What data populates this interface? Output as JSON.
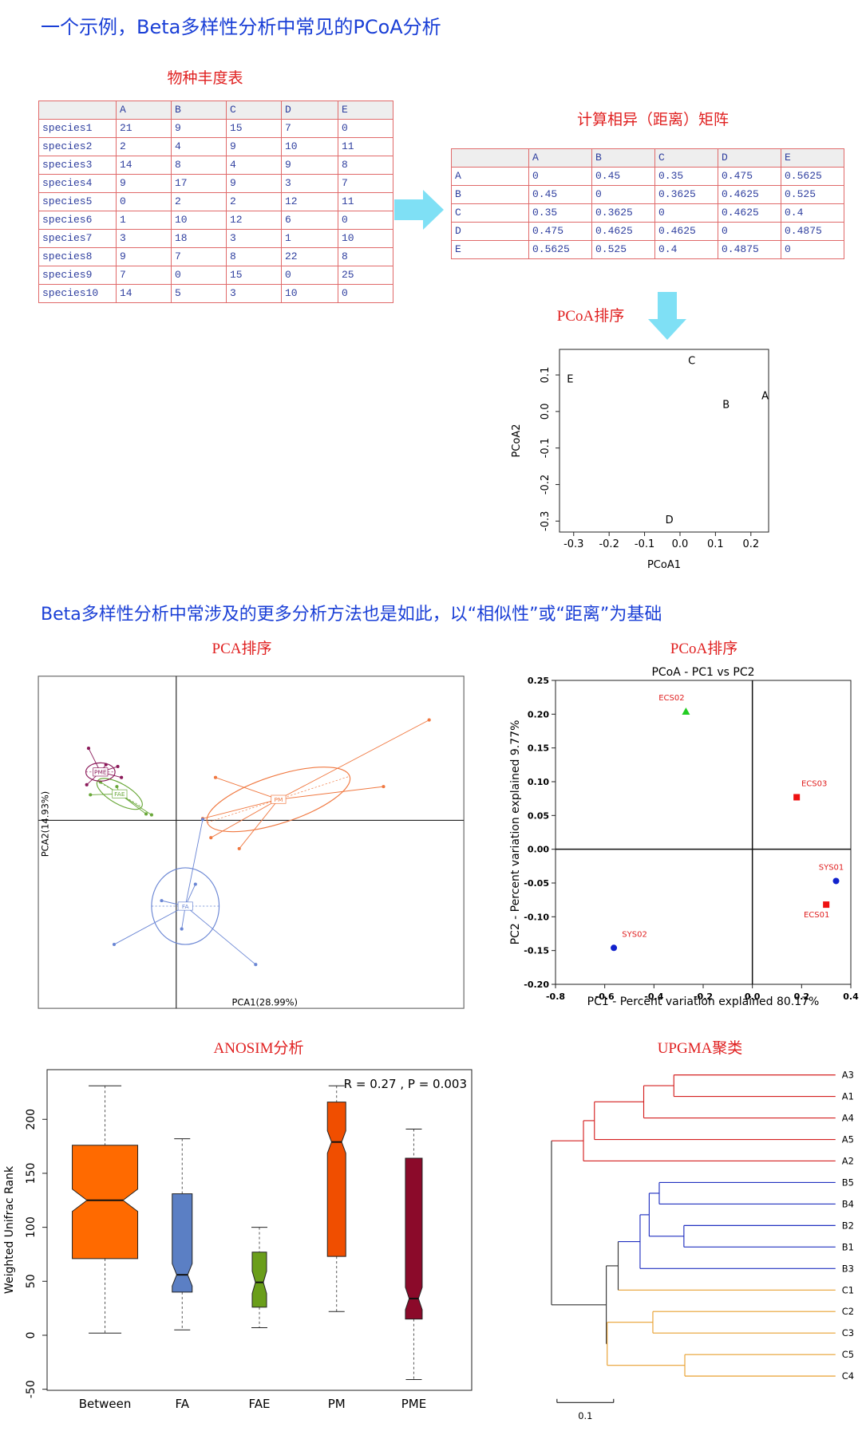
{
  "title": "一个示例，Beta多样性分析中常见的PCoA分析",
  "abundance_table": {
    "title": "物种丰度表",
    "columns": [
      "A",
      "B",
      "C",
      "D",
      "E"
    ],
    "rows": [
      {
        "name": "species1",
        "values": [
          21,
          9,
          15,
          7,
          0
        ]
      },
      {
        "name": "species2",
        "values": [
          2,
          4,
          9,
          10,
          11
        ]
      },
      {
        "name": "species3",
        "values": [
          14,
          8,
          4,
          9,
          8
        ]
      },
      {
        "name": "species4",
        "values": [
          9,
          17,
          9,
          3,
          7
        ]
      },
      {
        "name": "species5",
        "values": [
          0,
          2,
          2,
          12,
          11
        ]
      },
      {
        "name": "species6",
        "values": [
          1,
          10,
          12,
          6,
          0
        ]
      },
      {
        "name": "species7",
        "values": [
          3,
          18,
          3,
          1,
          10
        ]
      },
      {
        "name": "species8",
        "values": [
          9,
          7,
          8,
          22,
          8
        ]
      },
      {
        "name": "species9",
        "values": [
          7,
          0,
          15,
          0,
          25
        ]
      },
      {
        "name": "species10",
        "values": [
          14,
          5,
          3,
          10,
          0
        ]
      }
    ]
  },
  "distance_matrix": {
    "title": "计算相异（距离）矩阵",
    "columns": [
      "A",
      "B",
      "C",
      "D",
      "E"
    ],
    "rows": [
      {
        "name": "A",
        "values": [
          0,
          0.45,
          0.35,
          0.475,
          0.5625
        ]
      },
      {
        "name": "B",
        "values": [
          0.45,
          0,
          0.3625,
          0.4625,
          0.525
        ]
      },
      {
        "name": "C",
        "values": [
          0.35,
          0.3625,
          0,
          0.4625,
          0.4
        ]
      },
      {
        "name": "D",
        "values": [
          0.475,
          0.4625,
          0.4625,
          0,
          0.4875
        ]
      },
      {
        "name": "E",
        "values": [
          0.5625,
          0.525,
          0.4,
          0.4875,
          0
        ]
      }
    ]
  },
  "pcoa_example": {
    "title": "PCoA排序",
    "type": "scatter",
    "xlabel": "PCoA1",
    "ylabel": "PCoA2",
    "xlim": [
      -0.34,
      0.25
    ],
    "ylim": [
      -0.33,
      0.17
    ],
    "xticks": [
      -0.3,
      -0.2,
      -0.1,
      {
        "value": 0,
        "label": "0.0"
      },
      0.1,
      0.2
    ],
    "yticks": [
      -0.3,
      -0.2,
      -0.1,
      {
        "value": 0,
        "label": "0.0"
      },
      0.1
    ],
    "points": [
      {
        "label": "C",
        "x": 0.033,
        "y": 0.14
      },
      {
        "label": "E",
        "x": -0.31,
        "y": 0.09
      },
      {
        "label": "A",
        "x": 0.24,
        "y": 0.045
      },
      {
        "label": "B",
        "x": 0.13,
        "y": 0.02
      },
      {
        "label": "D",
        "x": -0.03,
        "y": -0.295
      }
    ]
  },
  "subtitle": "Beta多样性分析中常涉及的更多分析方法也是如此，以“相似性”或“距离”为基础",
  "pca": {
    "title": "PCA排序",
    "xlabel": "PCA1(28.99%)",
    "ylabel": "PCA2(14.93%)",
    "groups": [
      "PM",
      "FA",
      "FAE",
      "PME"
    ]
  },
  "pcoa": {
    "title": "PCoA排序",
    "type": "scatter",
    "chart_title": "PCoA - PC1 vs PC2",
    "xlabel": "PC1 - Percent variation explained 80.17%",
    "ylabel": "PC2 - Percent variation explained 9.77%",
    "xlim": [
      -0.8,
      0.4
    ],
    "ylim": [
      -0.2,
      0.25
    ],
    "xticks": [
      -0.8,
      -0.6,
      -0.4,
      -0.2,
      {
        "value": 0,
        "label": "0.0"
      },
      0.2,
      0.4
    ],
    "yticks": [
      {
        "value": -0.2,
        "label": "-0.20"
      },
      -0.15,
      {
        "value": -0.1,
        "label": "-0.10"
      },
      -0.05,
      {
        "value": 0,
        "label": "0.00"
      },
      0.05,
      {
        "value": 0.1,
        "label": "0.10"
      },
      0.15,
      {
        "value": 0.2,
        "label": "0.20"
      },
      0.25
    ],
    "points": [
      {
        "label": "ECS02",
        "x": -0.27,
        "y": 0.204,
        "color": "#22cc22",
        "marker": "triangle"
      },
      {
        "label": "ECS03",
        "x": 0.18,
        "y": 0.077,
        "color": "#ee1111",
        "marker": "square"
      },
      {
        "label": "SYS01",
        "x": 0.34,
        "y": -0.047,
        "color": "#1122cc",
        "marker": "circle"
      },
      {
        "label": "ECS01",
        "x": 0.3,
        "y": -0.082,
        "color": "#ee1111",
        "marker": "square"
      },
      {
        "label": "SYS02",
        "x": -0.563,
        "y": -0.146,
        "color": "#1122cc",
        "marker": "circle"
      }
    ]
  },
  "anosim": {
    "title": "ANOSIM分析",
    "type": "box",
    "annotation": "R =  0.27 ,  P =  0.003",
    "ylabel": "Weighted Unifrac Rank",
    "ylim": [
      -51,
      246
    ],
    "yticks": [
      -50,
      0,
      50,
      100,
      150,
      200
    ],
    "boxes": [
      {
        "name": "Between",
        "color": "#ff6a00",
        "whisker_low": 2,
        "q1": 71,
        "median": 125,
        "q3": 176,
        "whisker_high": 231
      },
      {
        "name": "FA",
        "color": "#5b7fc4",
        "whisker_low": 5,
        "q1": 40,
        "median": 56,
        "q3": 131,
        "whisker_high": 182
      },
      {
        "name": "FAE",
        "color": "#6a9e1a",
        "whisker_low": 7,
        "q1": 26,
        "median": 49,
        "q3": 77,
        "whisker_high": 100
      },
      {
        "name": "PM",
        "color": "#f04e00",
        "whisker_low": 22,
        "q1": 73,
        "median": 179,
        "q3": 216,
        "whisker_high": 231
      },
      {
        "name": "PME",
        "color": "#8b0a2a",
        "whisker_low": -41,
        "q1": 15,
        "median": 34,
        "q3": 164,
        "whisker_high": 191
      }
    ]
  },
  "upgma": {
    "title": "UPGMA聚类",
    "leaves": [
      "A3",
      "A1",
      "A4",
      "A5",
      "A2",
      "B5",
      "B4",
      "B2",
      "B1",
      "B3",
      "C1",
      "C2",
      "C3",
      "C5",
      "C4"
    ],
    "scale": 0.1
  }
}
